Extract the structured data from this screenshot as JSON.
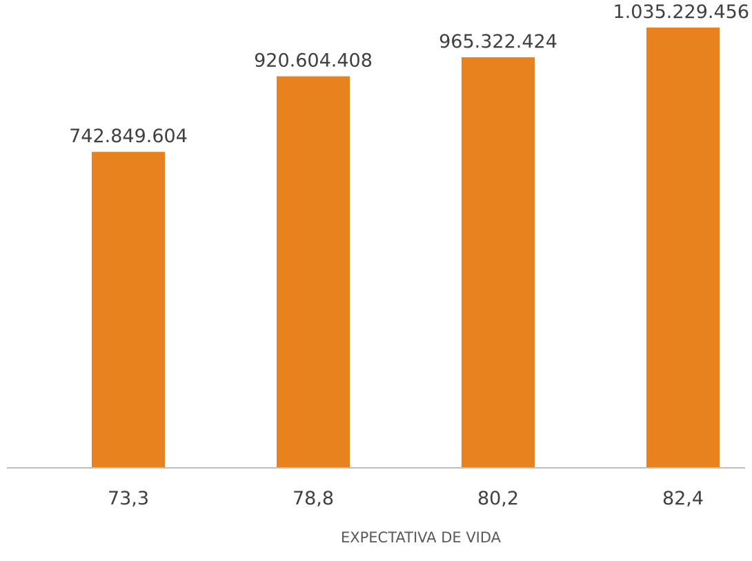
{
  "chart_data": {
    "type": "bar",
    "categories": [
      "73,3",
      "78,8",
      "80,2",
      "82,4"
    ],
    "values": [
      742849604,
      920604408,
      965322424,
      1035229456
    ],
    "data_labels": [
      "742.849.604",
      "920.604.408",
      "965.322.424",
      "1.035.229.456"
    ],
    "title": "",
    "xlabel": "EXPECTATIVA DE VIDA",
    "ylabel": "",
    "ylim": [
      0,
      1100000000
    ],
    "grid": false,
    "legend": "none",
    "bar_color": "#E8821E",
    "axis_color": "#BFBFBF"
  }
}
